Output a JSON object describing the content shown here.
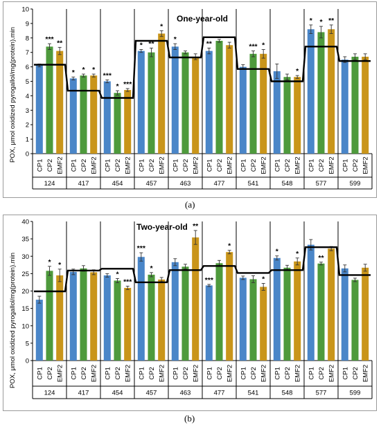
{
  "colors": {
    "CP1": "#4a86c8",
    "CP2": "#4e9a3c",
    "EMF2": "#c9951a",
    "mean_line": "#000000"
  },
  "chart_data": [
    {
      "type": "bar",
      "title": "One-year-old",
      "ylabel": "POX, μmol oxidized pyrogallol/mg(protein).min",
      "ylim": [
        0,
        10
      ],
      "yticks": [
        0,
        1,
        2,
        3,
        4,
        5,
        6,
        7,
        8,
        9,
        10
      ],
      "groups": [
        "124",
        "417",
        "454",
        "457",
        "463",
        "477",
        "541",
        "548",
        "577",
        "599"
      ],
      "subcategories": [
        "CP1",
        "CP2",
        "EMF2"
      ],
      "series": [
        {
          "name": "CP1",
          "values": [
            6.1,
            5.2,
            5.0,
            7.1,
            7.4,
            7.1,
            6.0,
            5.7,
            8.6,
            6.5
          ],
          "errors": [
            0.1,
            0.1,
            0.1,
            0.1,
            0.2,
            0.2,
            0.15,
            0.5,
            0.3,
            0.2
          ],
          "annotations": [
            "",
            "*",
            "***",
            "*",
            "*",
            "**",
            "",
            "",
            "*",
            ""
          ]
        },
        {
          "name": "CP2",
          "values": [
            7.4,
            5.4,
            4.2,
            7.0,
            7.0,
            7.8,
            6.9,
            5.3,
            8.4,
            6.7
          ],
          "errors": [
            0.2,
            0.1,
            0.15,
            0.3,
            0.1,
            0.1,
            0.2,
            0.2,
            0.4,
            0.2
          ],
          "annotations": [
            "***",
            "*",
            "*",
            "**",
            "",
            "",
            "***",
            "",
            "*",
            ""
          ]
        },
        {
          "name": "EMF2",
          "values": [
            7.1,
            5.4,
            4.4,
            8.3,
            6.7,
            7.5,
            6.9,
            5.3,
            8.6,
            6.7
          ],
          "errors": [
            0.25,
            0.1,
            0.1,
            0.2,
            0.2,
            0.2,
            0.3,
            0.1,
            0.3,
            0.2
          ],
          "annotations": [
            "**",
            "*",
            "***",
            "*",
            "",
            "",
            "*",
            "*",
            "**",
            ""
          ]
        }
      ],
      "group_means": [
        6.15,
        4.35,
        3.85,
        7.8,
        6.65,
        8.05,
        5.85,
        5.0,
        7.4,
        6.4
      ],
      "caption": "(a)"
    },
    {
      "type": "bar",
      "title": "Two-year-old",
      "ylabel": "POX, μmol oxidized pyrogallol/mg(protein).min",
      "ylim": [
        0,
        40
      ],
      "yticks": [
        0,
        5,
        10,
        15,
        20,
        25,
        30,
        35,
        40
      ],
      "groups": [
        "124",
        "417",
        "454",
        "457",
        "463",
        "477",
        "541",
        "548",
        "577",
        "599"
      ],
      "subcategories": [
        "CP1",
        "CP2",
        "EMF2"
      ],
      "series": [
        {
          "name": "CP1",
          "values": [
            17.5,
            25.5,
            24.5,
            29.8,
            28.3,
            21.6,
            23.8,
            29.5,
            33.3,
            26.5
          ],
          "errors": [
            1.0,
            0.8,
            0.5,
            1.2,
            1.0,
            0.3,
            0.5,
            0.6,
            1.5,
            1.0
          ],
          "annotations": [
            "",
            "",
            "",
            "***",
            "",
            "***",
            "",
            "*",
            "",
            ""
          ]
        },
        {
          "name": "CP2",
          "values": [
            25.8,
            26.5,
            23.0,
            24.7,
            27.0,
            28.0,
            23.4,
            26.7,
            27.9,
            23.2
          ],
          "errors": [
            1.3,
            0.8,
            0.6,
            0.6,
            0.7,
            0.8,
            1.0,
            0.7,
            0.4,
            0.5
          ],
          "annotations": [
            "*",
            "",
            "*",
            "*",
            "",
            "",
            "",
            "",
            "**",
            ""
          ]
        },
        {
          "name": "EMF2",
          "values": [
            24.5,
            25.4,
            20.9,
            23.3,
            35.4,
            31.2,
            21.2,
            28.5,
            32.2,
            26.7
          ],
          "errors": [
            1.8,
            0.7,
            0.5,
            0.6,
            2.0,
            0.5,
            1.0,
            1.0,
            0.6,
            1.0
          ],
          "annotations": [
            "*",
            "",
            "***",
            "",
            "**",
            "*",
            "*",
            "*",
            "",
            ""
          ]
        }
      ],
      "group_means": [
        19.9,
        25.9,
        26.4,
        22.5,
        26.0,
        27.2,
        25.2,
        26.0,
        32.6,
        24.6
      ],
      "caption": "(b)"
    }
  ]
}
